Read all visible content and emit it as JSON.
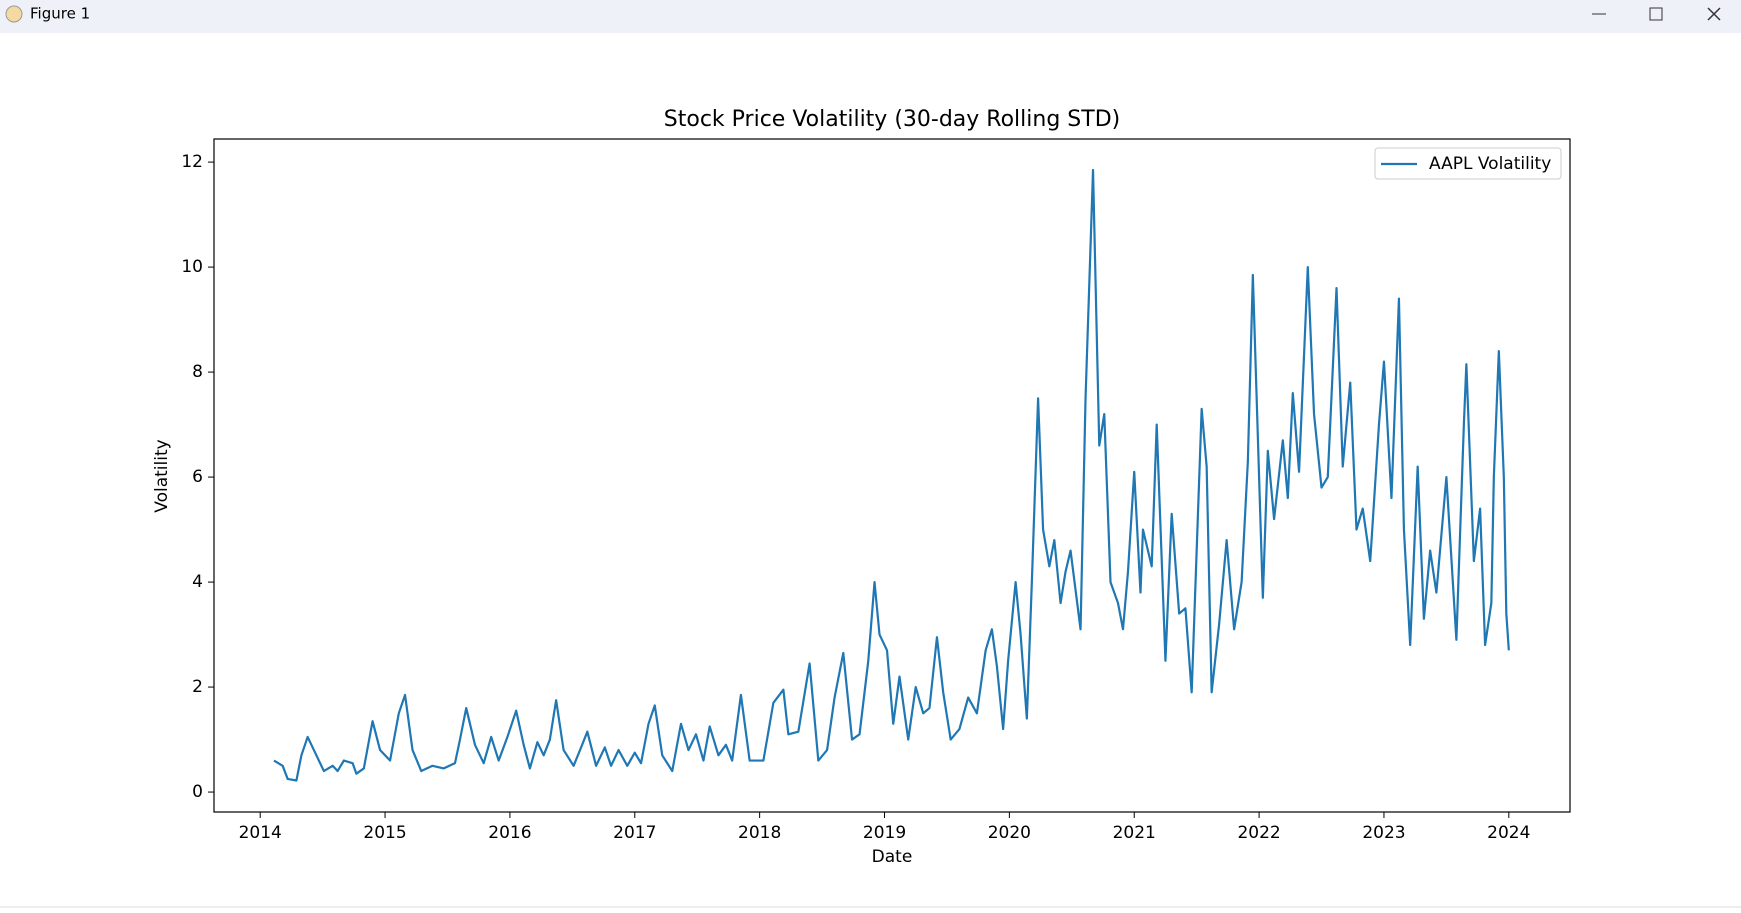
{
  "window": {
    "title": "Figure 1"
  },
  "chart_data": {
    "type": "line",
    "title": "Stock Price Volatility (30-day Rolling STD)",
    "xlabel": "Date",
    "ylabel": "Volatility",
    "x": [
      2014.11,
      2014.18,
      2014.22,
      2014.29,
      2014.33,
      2014.38,
      2014.44,
      2014.51,
      2014.58,
      2014.62,
      2014.67,
      2014.74,
      2014.77,
      2014.83,
      2014.9,
      2014.96,
      2015.04,
      2015.11,
      2015.16,
      2015.22,
      2015.29,
      2015.38,
      2015.47,
      2015.56,
      2015.6,
      2015.65,
      2015.72,
      2015.79,
      2015.85,
      2015.91,
      2015.98,
      2016.05,
      2016.11,
      2016.16,
      2016.22,
      2016.27,
      2016.32,
      2016.37,
      2016.43,
      2016.51,
      2016.57,
      2016.62,
      2016.69,
      2016.76,
      2016.81,
      2016.87,
      2016.94,
      2017.0,
      2017.05,
      2017.11,
      2017.16,
      2017.22,
      2017.3,
      2017.37,
      2017.43,
      2017.49,
      2017.55,
      2017.6,
      2017.67,
      2017.73,
      2017.78,
      2017.85,
      2017.92,
      2018.03,
      2018.11,
      2018.19,
      2018.23,
      2018.31,
      2018.4,
      2018.47,
      2018.54,
      2018.6,
      2018.67,
      2018.74,
      2018.8,
      2018.87,
      2018.92,
      2018.96,
      2019.02,
      2019.07,
      2019.12,
      2019.19,
      2019.25,
      2019.31,
      2019.36,
      2019.42,
      2019.47,
      2019.53,
      2019.6,
      2019.67,
      2019.74,
      2019.81,
      2019.86,
      2019.9,
      2019.95,
      2019.99,
      2020.05,
      2020.09,
      2020.14,
      2020.18,
      2020.23,
      2020.27,
      2020.32,
      2020.36,
      2020.41,
      2020.45,
      2020.49,
      2020.57,
      2020.61,
      2020.67,
      2020.72,
      2020.76,
      2020.81,
      2020.87,
      2020.91,
      2020.95,
      2021.0,
      2021.05,
      2021.07,
      2021.14,
      2021.18,
      2021.25,
      2021.3,
      2021.36,
      2021.41,
      2021.46,
      2021.54,
      2021.58,
      2021.62,
      2021.68,
      2021.74,
      2021.8,
      2021.86,
      2021.91,
      2021.95,
      2022.0,
      2022.03,
      2022.07,
      2022.12,
      2022.19,
      2022.23,
      2022.27,
      2022.32,
      2022.39,
      2022.44,
      2022.5,
      2022.55,
      2022.62,
      2022.67,
      2022.73,
      2022.78,
      2022.83,
      2022.89,
      2022.96,
      2023.0,
      2023.06,
      2023.12,
      2023.16,
      2023.21,
      2023.27,
      2023.32,
      2023.37,
      2023.42,
      2023.5,
      2023.58,
      2023.64,
      2023.66,
      2023.72,
      2023.77,
      2023.81,
      2023.86,
      2023.88,
      2023.92,
      2023.96,
      2023.98,
      2024.0
    ],
    "series": [
      {
        "name": "AAPL Volatility",
        "color": "#1f77b4",
        "values": [
          0.6,
          0.5,
          0.25,
          0.22,
          0.7,
          1.05,
          0.75,
          0.4,
          0.5,
          0.4,
          0.6,
          0.55,
          0.35,
          0.45,
          1.35,
          0.8,
          0.6,
          1.5,
          1.85,
          0.8,
          0.4,
          0.5,
          0.45,
          0.55,
          1.0,
          1.6,
          0.9,
          0.55,
          1.05,
          0.6,
          1.05,
          1.55,
          0.9,
          0.45,
          0.95,
          0.7,
          1.0,
          1.75,
          0.8,
          0.5,
          0.85,
          1.15,
          0.5,
          0.85,
          0.5,
          0.8,
          0.5,
          0.75,
          0.55,
          1.3,
          1.65,
          0.7,
          0.4,
          1.3,
          0.8,
          1.1,
          0.6,
          1.25,
          0.7,
          0.9,
          0.6,
          1.85,
          0.6,
          0.6,
          1.7,
          1.95,
          1.1,
          1.15,
          2.45,
          0.6,
          0.8,
          1.8,
          2.65,
          1.0,
          1.1,
          2.5,
          4.0,
          3.0,
          2.7,
          1.3,
          2.2,
          1.0,
          2.0,
          1.5,
          1.6,
          2.95,
          1.9,
          1.0,
          1.2,
          1.8,
          1.5,
          2.7,
          3.1,
          2.4,
          1.2,
          2.5,
          4.0,
          3.0,
          1.4,
          4.0,
          7.5,
          5.0,
          4.3,
          4.8,
          3.6,
          4.2,
          4.6,
          3.1,
          7.5,
          11.85,
          6.6,
          7.2,
          4.0,
          3.6,
          3.1,
          4.2,
          6.1,
          3.8,
          5.0,
          4.3,
          7.0,
          2.5,
          5.3,
          3.4,
          3.5,
          1.9,
          7.3,
          6.2,
          1.9,
          3.2,
          4.8,
          3.1,
          4.0,
          6.3,
          9.85,
          6.0,
          3.7,
          6.5,
          5.2,
          6.7,
          5.6,
          7.6,
          6.1,
          10.0,
          7.2,
          5.8,
          6.0,
          9.6,
          6.2,
          7.8,
          5.0,
          5.4,
          4.4,
          7.0,
          8.2,
          5.6,
          9.4,
          5.0,
          2.8,
          6.2,
          3.3,
          4.6,
          3.8,
          6.0,
          2.9,
          7.0,
          8.15,
          4.4,
          5.4,
          2.8,
          3.6,
          6.0,
          8.4,
          6.0,
          3.4,
          2.7
        ]
      }
    ],
    "xlim": [
      2013.63,
      2024.49
    ],
    "xticks": [
      2014,
      2015,
      2016,
      2017,
      2018,
      2019,
      2020,
      2021,
      2022,
      2023,
      2024
    ],
    "ylim": [
      -0.38,
      12.44
    ],
    "yticks": [
      0,
      2,
      4,
      6,
      8,
      10,
      12
    ],
    "grid": false,
    "legend": "upper right"
  }
}
